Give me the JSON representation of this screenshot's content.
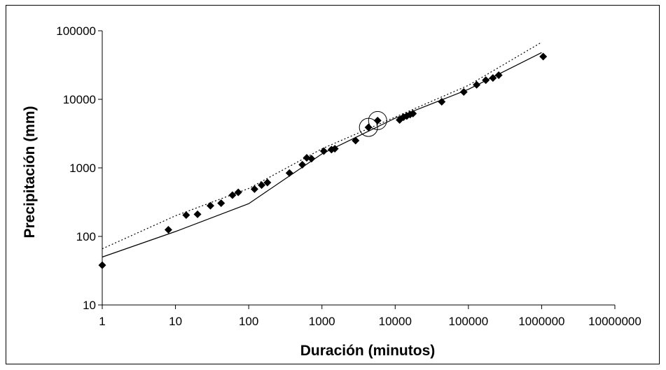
{
  "chart_data": {
    "type": "scatter",
    "title": "",
    "xlabel": "Duración (minutos)",
    "ylabel": "Precipitación (mm)",
    "x_scale": "log",
    "y_scale": "log",
    "xlim": [
      1,
      10000000
    ],
    "ylim": [
      10,
      100000
    ],
    "x_ticks": [
      1,
      10,
      100,
      1000,
      10000,
      100000,
      1000000,
      10000000
    ],
    "x_tick_labels": [
      "1",
      "10",
      "100",
      "1000",
      "10000",
      "100000",
      "1000000",
      "10000000"
    ],
    "y_ticks": [
      10,
      100,
      1000,
      10000,
      100000
    ],
    "y_tick_labels": [
      "10",
      "100",
      "1000",
      "10000",
      "100000"
    ],
    "grid": false,
    "legend": "none",
    "series": [
      {
        "marker": "diamond",
        "color": "#000000",
        "points": [
          [
            1,
            38
          ],
          [
            8,
            125
          ],
          [
            14,
            205
          ],
          [
            20,
            210
          ],
          [
            30,
            280
          ],
          [
            42,
            305
          ],
          [
            60,
            400
          ],
          [
            72,
            440
          ],
          [
            120,
            490
          ],
          [
            150,
            560
          ],
          [
            180,
            610
          ],
          [
            360,
            840
          ],
          [
            540,
            1110
          ],
          [
            620,
            1400
          ],
          [
            720,
            1360
          ],
          [
            1060,
            1760
          ],
          [
            1350,
            1850
          ],
          [
            1500,
            1900
          ],
          [
            2880,
            2500
          ],
          [
            4320,
            3900
          ],
          [
            5760,
            4900
          ],
          [
            11500,
            5000
          ],
          [
            13000,
            5500
          ],
          [
            14400,
            5700
          ],
          [
            16000,
            6000
          ],
          [
            17500,
            6200
          ],
          [
            43200,
            9200
          ],
          [
            86400,
            12800
          ],
          [
            129600,
            16300
          ],
          [
            172800,
            19000
          ],
          [
            216000,
            20500
          ],
          [
            259200,
            22500
          ],
          [
            1050000,
            42000
          ]
        ]
      },
      {
        "style": "solid-line",
        "color": "#000000",
        "points": [
          [
            1,
            50
          ],
          [
            10,
            118
          ],
          [
            100,
            300
          ],
          [
            1000,
            1600
          ],
          [
            10000,
            5300
          ],
          [
            100000,
            14000
          ],
          [
            1000000,
            48000
          ]
        ]
      },
      {
        "style": "dotted-line",
        "color": "#000000",
        "points": [
          [
            1,
            66
          ],
          [
            10,
            200
          ],
          [
            100,
            500
          ],
          [
            1000,
            1900
          ],
          [
            10000,
            5500
          ],
          [
            100000,
            16000
          ],
          [
            1000000,
            68000
          ]
        ]
      }
    ],
    "annotations": [
      {
        "shape": "circle",
        "x": 4320,
        "y": 3900
      },
      {
        "shape": "circle",
        "x": 5760,
        "y": 4900
      }
    ]
  }
}
